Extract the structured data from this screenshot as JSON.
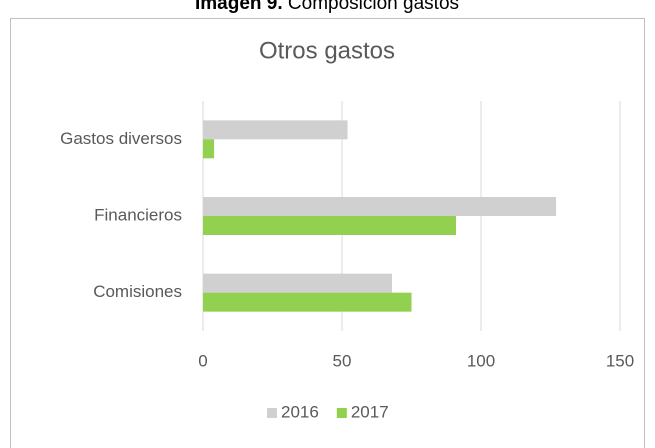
{
  "caption": {
    "label": "Imagen 9.",
    "text": "Composición gastos"
  },
  "chart_data": {
    "type": "bar",
    "orientation": "horizontal",
    "title": "Otros gastos",
    "categories": [
      "Gastos diversos",
      "Financieros",
      "Comisiones"
    ],
    "series": [
      {
        "name": "2016",
        "color": "#d0d0d0",
        "values": [
          52,
          127,
          68
        ]
      },
      {
        "name": "2017",
        "color": "#92d050",
        "values": [
          4,
          91,
          75
        ]
      }
    ],
    "xlim": [
      0,
      150
    ],
    "xticks": [
      0,
      50,
      100,
      150
    ],
    "grid": true,
    "legend": "bottom"
  }
}
